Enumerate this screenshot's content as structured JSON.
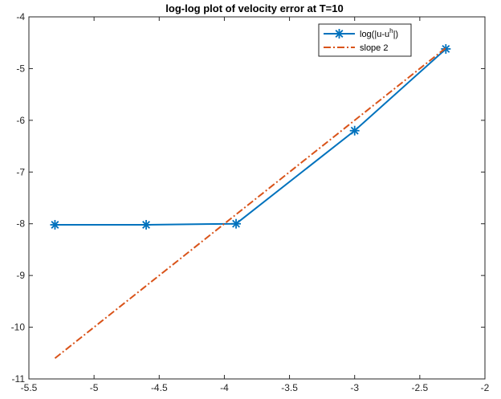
{
  "chart_data": {
    "type": "line",
    "title": "log-log plot of velocity error at T=10",
    "xlabel": "",
    "ylabel": "",
    "xlim": [
      -5.5,
      -2
    ],
    "ylim": [
      -11,
      -4
    ],
    "x_ticks": [
      -5.5,
      -5,
      -4.5,
      -4,
      -3.5,
      -3,
      -2.5,
      -2
    ],
    "x_tick_labels": [
      "-5.5",
      "-5",
      "-4.5",
      "-4",
      "-3.5",
      "-3",
      "-2.5",
      "-2"
    ],
    "y_ticks": [
      -11,
      -10,
      -9,
      -8,
      -7,
      -6,
      -5,
      -4
    ],
    "y_tick_labels": [
      "-11",
      "-10",
      "-9",
      "-8",
      "-7",
      "-6",
      "-5",
      "-4"
    ],
    "grid": false,
    "legend": {
      "placement": "top-right",
      "entries": [
        {
          "label_main": "log(|u-u",
          "label_sup": "h",
          "label_tail": "|)"
        },
        {
          "label": "slope 2"
        }
      ]
    },
    "series": [
      {
        "name": "log(|u-u^h|)",
        "color": "#0072BD",
        "line_style": "solid",
        "marker": "asterisk",
        "x": [
          -5.3,
          -4.6,
          -3.91,
          -3.0,
          -2.3
        ],
        "y": [
          -8.02,
          -8.02,
          -8.0,
          -6.2,
          -4.62
        ]
      },
      {
        "name": "slope 2",
        "color": "#D95319",
        "line_style": "dash-dot",
        "marker": "none",
        "x": [
          -5.3,
          -2.3
        ],
        "y": [
          -10.6,
          -4.6
        ]
      }
    ]
  }
}
